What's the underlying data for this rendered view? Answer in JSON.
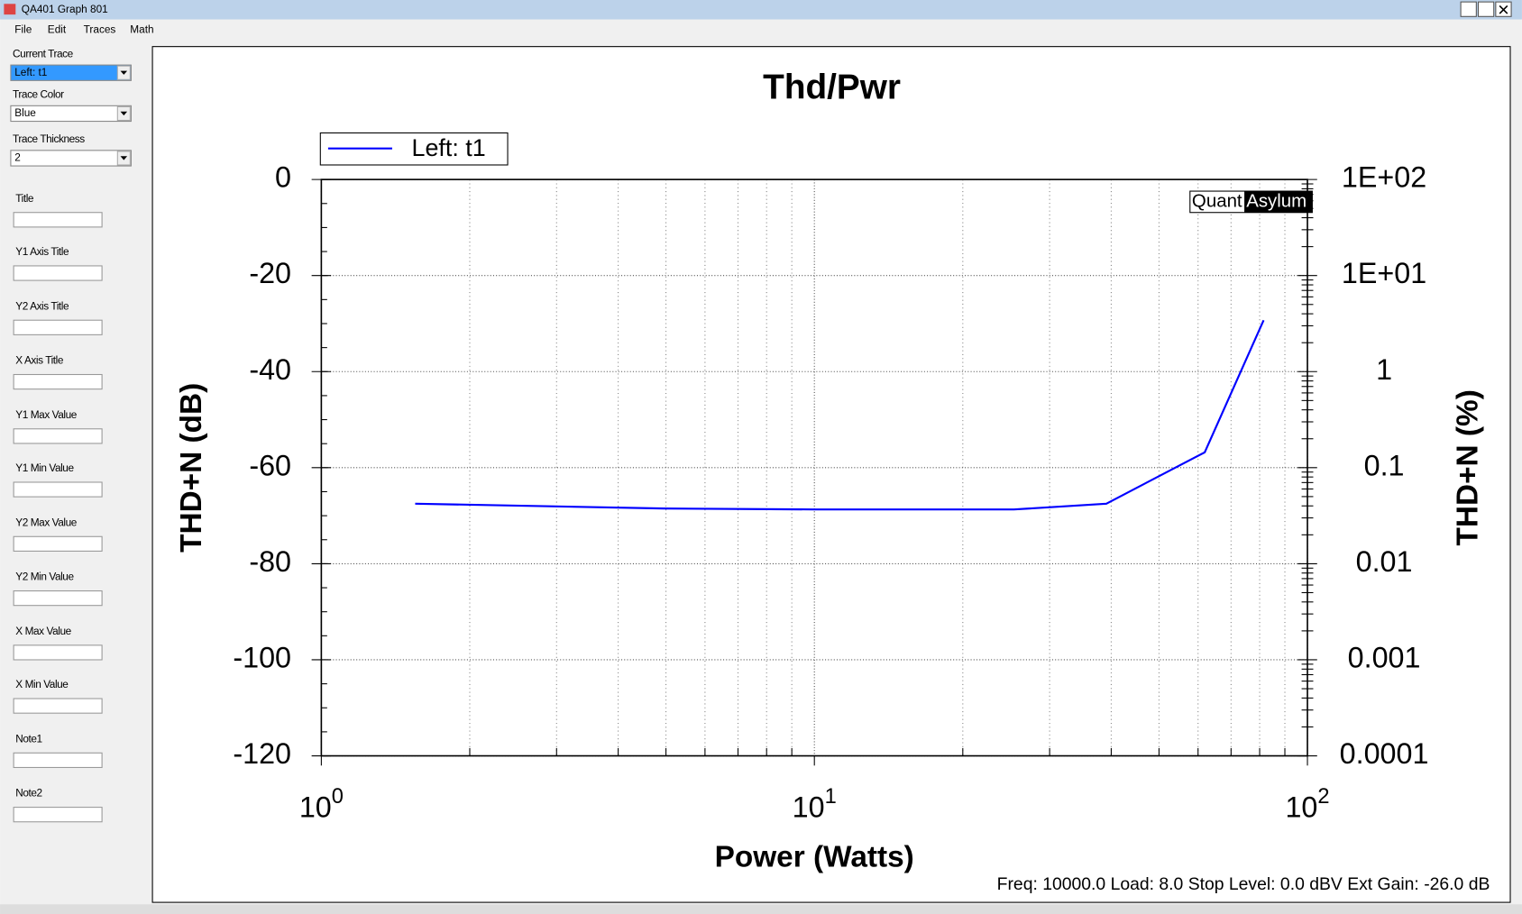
{
  "window": {
    "title": "QA401 Graph 801"
  },
  "menu": [
    "File",
    "Edit",
    "Traces",
    "Math"
  ],
  "sidebar": [
    {
      "label": "Current Trace",
      "value": "Left: t1"
    },
    {
      "label": "Trace Color",
      "value": "Blue"
    },
    {
      "label": "Trace Thickness",
      "value": "2"
    },
    {
      "label": "Title"
    },
    {
      "label": "Y1 Axis Title"
    },
    {
      "label": "Y2 Axis Title"
    },
    {
      "label": "X Axis Title"
    },
    {
      "label": "Y1 Max Value"
    },
    {
      "label": "Y1 Min Value"
    },
    {
      "label": "Y2 Max Value"
    },
    {
      "label": "Y2 Min Value"
    },
    {
      "label": "X Max Value"
    },
    {
      "label": "X Min Value"
    },
    {
      "label": "Note1"
    },
    {
      "label": "Note2"
    }
  ],
  "chart_data": {
    "type": "line",
    "title": "Thd/Pwr",
    "x_label": "Power (Watts)",
    "y_label": "THD+N (dB)",
    "y2_label": "THD+N (%)",
    "x_log": true,
    "y2_log": true,
    "grid": true,
    "xlim": [
      1,
      100
    ],
    "xticks": [
      {
        "value": 1,
        "label": "10",
        "exponent": "0"
      },
      {
        "value": 10,
        "label": "10",
        "exponent": "1"
      },
      {
        "value": 100,
        "label": "10",
        "exponent": "2"
      }
    ],
    "ylim": [
      -120,
      0
    ],
    "yticks": [
      0,
      -20,
      -40,
      -60,
      -80,
      -100,
      -120
    ],
    "y2lim": [
      0.0001,
      100
    ],
    "y2ticks": [
      {
        "value": 100,
        "label": "1E+02"
      },
      {
        "value": 10,
        "label": "1E+01"
      },
      1,
      0.1,
      0.01,
      0.001,
      0.0001
    ],
    "series": [
      {
        "name": "Left: t1",
        "color": "#0000ff",
        "x": [
          1.55,
          4.95,
          10,
          25.4,
          39.1,
          61.9,
          81.5
        ],
        "values": [
          -67.5,
          -68.5,
          -68.7,
          -68.7,
          -67.5,
          -56.8,
          -29.3
        ]
      }
    ],
    "watermark": [
      "Quant",
      "Asylum"
    ],
    "footer": "Freq: 10000.0 Load: 8.0 Stop Level: 0.0 dBV  Ext Gain: -26.0 dB"
  }
}
